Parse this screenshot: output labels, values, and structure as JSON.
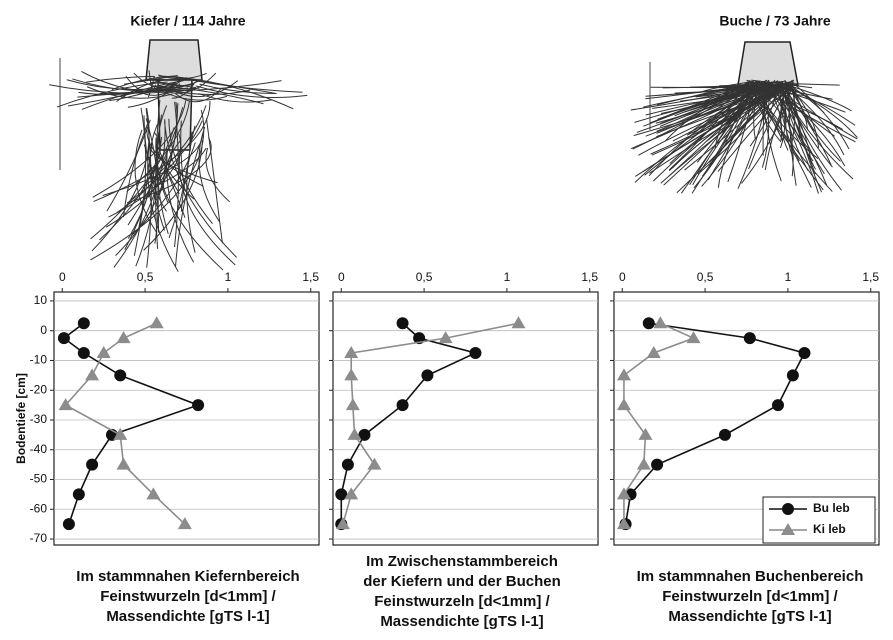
{
  "drawings": [
    {
      "label": "Kiefer / 114 Jahre"
    },
    {
      "label": "Buche / 73 Jahre"
    }
  ],
  "chart_data": [
    {
      "type": "line",
      "caption": [
        "Im stammnahen Kiefernbereich",
        "Feinstwurzeln [d<1mm] /",
        "Massendichte [gTS l-1]"
      ],
      "ylabel": "Bodentiefe [cm]",
      "ytick_labels": true,
      "xlim": [
        -0.05,
        1.55
      ],
      "ylim": [
        -72,
        13
      ],
      "xticks": [
        0,
        {
          "value": 0.5,
          "label": "0,5"
        },
        1,
        {
          "value": 1.5,
          "label": "1,5"
        }
      ],
      "yticks": [
        10,
        0,
        -10,
        -20,
        -30,
        -40,
        -50,
        -60,
        -70
      ],
      "grid": true,
      "series": [
        {
          "name": "Bu leb",
          "color": "#111111",
          "marker": "circle",
          "x": [
            0.13,
            0.01,
            0.13,
            0.35,
            0.82,
            0.3,
            0.18,
            0.1,
            0.04
          ],
          "y": [
            2.5,
            -2.5,
            -7.5,
            -15,
            -25,
            -35,
            -45,
            -55,
            -65
          ]
        },
        {
          "name": "Ki leb",
          "color": "#8c8c8c",
          "marker": "triangle",
          "x": [
            0.57,
            0.37,
            0.25,
            0.18,
            0.02,
            0.35,
            0.37,
            0.55,
            0.74
          ],
          "y": [
            2.5,
            -2.5,
            -7.5,
            -15,
            -25,
            -35,
            -45,
            -55,
            -65
          ]
        }
      ]
    },
    {
      "type": "line",
      "caption": [
        "Im Zwischenstammbereich",
        "der Kiefern und der Buchen",
        "Feinstwurzeln [d<1mm] /",
        "Massendichte [gTS l-1]"
      ],
      "ytick_labels": false,
      "xlim": [
        -0.05,
        1.55
      ],
      "ylim": [
        -72,
        13
      ],
      "xticks": [
        0,
        {
          "value": 0.5,
          "label": "0,5"
        },
        1,
        {
          "value": 1.5,
          "label": "1,5"
        }
      ],
      "yticks": [
        10,
        0,
        -10,
        -20,
        -30,
        -40,
        -50,
        -60,
        -70
      ],
      "grid": true,
      "series": [
        {
          "name": "Bu leb",
          "color": "#111111",
          "marker": "circle",
          "x": [
            0.37,
            0.47,
            0.81,
            0.52,
            0.37,
            0.14,
            0.04,
            0.0,
            0.0
          ],
          "y": [
            2.5,
            -2.5,
            -7.5,
            -15,
            -25,
            -35,
            -45,
            -55,
            -65
          ]
        },
        {
          "name": "Ki leb",
          "color": "#8c8c8c",
          "marker": "triangle",
          "x": [
            1.07,
            0.63,
            0.06,
            0.06,
            0.07,
            0.08,
            0.2,
            0.06,
            0.01
          ],
          "y": [
            2.5,
            -2.5,
            -7.5,
            -15,
            -25,
            -35,
            -45,
            -55,
            -65
          ]
        }
      ]
    },
    {
      "type": "line",
      "caption": [
        "Im stammnahen Buchenbereich",
        "Feinstwurzeln [d<1mm] /",
        "Massendichte [gTS l-1]"
      ],
      "ytick_labels": false,
      "legend": "lower right",
      "xlim": [
        -0.05,
        1.55
      ],
      "ylim": [
        -72,
        13
      ],
      "xticks": [
        0,
        {
          "value": 0.5,
          "label": "0,5"
        },
        1,
        {
          "value": 1.5,
          "label": "1,5"
        }
      ],
      "yticks": [
        10,
        0,
        -10,
        -20,
        -30,
        -40,
        -50,
        -60,
        -70
      ],
      "grid": true,
      "series": [
        {
          "name": "Bu leb",
          "color": "#111111",
          "marker": "circle",
          "x": [
            0.16,
            0.77,
            1.1,
            1.03,
            0.94,
            0.62,
            0.21,
            0.05,
            0.02
          ],
          "y": [
            2.5,
            -2.5,
            -7.5,
            -15,
            -25,
            -35,
            -45,
            -55,
            -65
          ]
        },
        {
          "name": "Ki leb",
          "color": "#8c8c8c",
          "marker": "triangle",
          "x": [
            0.23,
            0.43,
            0.19,
            0.01,
            0.01,
            0.14,
            0.13,
            0.01,
            0.01
          ],
          "y": [
            2.5,
            -2.5,
            -7.5,
            -15,
            -25,
            -35,
            -45,
            -55,
            -65
          ]
        }
      ]
    }
  ]
}
